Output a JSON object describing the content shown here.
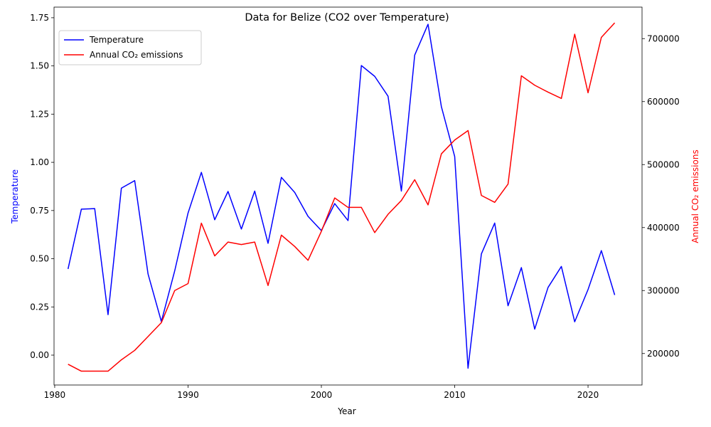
{
  "chart_data": {
    "type": "line",
    "title": "Data for Belize (CO2 over Temperature)",
    "xlabel": "Year",
    "ylabel_left": "Temperature",
    "ylabel_right": "Annual CO₂ emissions",
    "xlim": [
      1979.95,
      2024.05
    ],
    "ylim_left": [
      -0.155,
      1.805
    ],
    "ylim_right": [
      150000,
      750000
    ],
    "x_ticks": [
      1980,
      1990,
      2000,
      2010,
      2020
    ],
    "y_ticks_left": [
      0.0,
      0.25,
      0.5,
      0.75,
      1.0,
      1.25,
      1.5,
      1.75
    ],
    "y_tick_labels_left": [
      "0.00",
      "0.25",
      "0.50",
      "0.75",
      "1.00",
      "1.25",
      "1.50",
      "1.75"
    ],
    "y_ticks_right": [
      200000,
      300000,
      400000,
      500000,
      600000,
      700000
    ],
    "y_tick_labels_right": [
      "200000",
      "300000",
      "400000",
      "500000",
      "600000",
      "700000"
    ],
    "grid": false,
    "legend_position": "upper-left",
    "colors": {
      "temperature": "#0000ff",
      "co2": "#ff0000"
    },
    "x": [
      1981,
      1982,
      1983,
      1984,
      1985,
      1986,
      1987,
      1988,
      1989,
      1990,
      1991,
      1992,
      1993,
      1994,
      1995,
      1996,
      1997,
      1998,
      1999,
      2000,
      2001,
      2002,
      2003,
      2004,
      2005,
      2006,
      2007,
      2008,
      2009,
      2010,
      2011,
      2012,
      2013,
      2014,
      2015,
      2016,
      2017,
      2018,
      2019,
      2020,
      2021,
      2022
    ],
    "series": [
      {
        "name": "Temperature",
        "axis": "left",
        "values": [
          0.447,
          0.757,
          0.76,
          0.21,
          0.866,
          0.905,
          0.421,
          0.174,
          0.437,
          0.737,
          0.948,
          0.702,
          0.849,
          0.654,
          0.851,
          0.58,
          0.922,
          0.844,
          0.72,
          0.646,
          0.786,
          0.698,
          1.502,
          1.446,
          1.343,
          0.851,
          1.556,
          1.716,
          1.289,
          1.03,
          -0.068,
          0.525,
          0.685,
          0.256,
          0.454,
          0.135,
          0.351,
          0.46,
          0.173,
          0.34,
          0.542,
          0.312
        ]
      },
      {
        "name": "Annual CO₂ emissions",
        "axis": "right",
        "values": [
          183000,
          172000,
          172000,
          172000,
          190000,
          205000,
          227000,
          249000,
          300000,
          311000,
          407000,
          355000,
          377000,
          373000,
          377000,
          308000,
          388000,
          370000,
          348000,
          394000,
          447000,
          432000,
          432000,
          392000,
          421000,
          443000,
          476000,
          436000,
          517000,
          539000,
          554000,
          451000,
          440000,
          469000,
          641000,
          626000,
          615000,
          605000,
          707000,
          614000,
          702000,
          725000
        ]
      }
    ]
  }
}
